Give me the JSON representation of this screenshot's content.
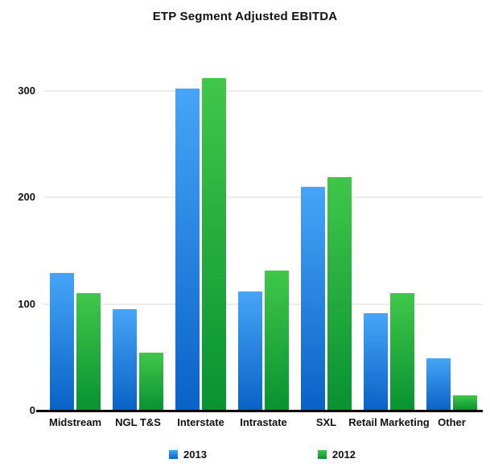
{
  "title": "ETP Segment Adjusted EBITDA",
  "chart_data": {
    "type": "bar",
    "title": "ETP Segment Adjusted EBITDA",
    "categories": [
      "Midstream",
      "NGL T&S",
      "Interstate",
      "Intrastate",
      "SXL",
      "Retail Marketing",
      "Other"
    ],
    "series": [
      {
        "name": "2013",
        "values": [
          129,
          95,
          302,
          112,
          210,
          91,
          49
        ],
        "color_top": "#46a5f7",
        "color_bottom": "#0962c6"
      },
      {
        "name": "2012",
        "values": [
          110,
          54,
          312,
          131,
          219,
          110,
          14
        ],
        "color_top": "#40c74a",
        "color_bottom": "#089231"
      }
    ],
    "xlabel": "",
    "ylabel": "",
    "yticks": [
      0,
      100,
      200,
      300
    ],
    "ylim": [
      0,
      320
    ],
    "grid": true,
    "legend_position": "bottom",
    "background_color": "#ffffff",
    "gridline_color": "#ebebeb",
    "axis_color": "#000000",
    "text_color": "#111111"
  }
}
